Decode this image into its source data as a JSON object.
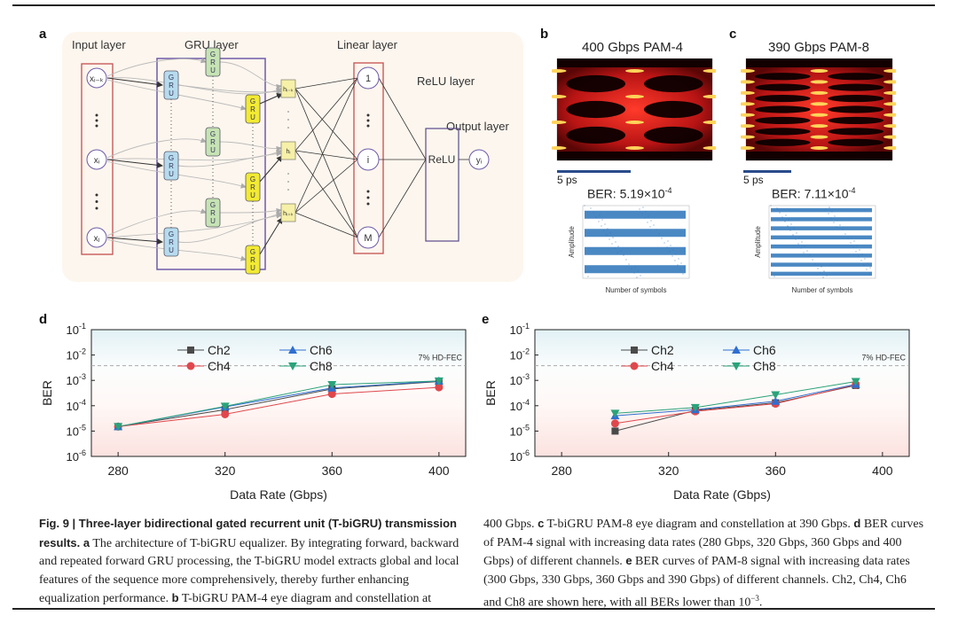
{
  "panels": {
    "a": {
      "label": "a",
      "layers": {
        "input": "Input layer",
        "gru": "GRU layer",
        "linear": "Linear layer",
        "relu": "ReLU layer",
        "output": "Output layer"
      },
      "input_nodes": [
        "xᵢ₋ₖ",
        "xᵢ",
        "xⱼ"
      ],
      "gru_cell_text": [
        "G",
        "R",
        "U"
      ],
      "hidden_nodes": [
        "hᵢ₋ₖ",
        "hᵢ",
        "hᵢ₊ₖ"
      ],
      "linear_nodes": [
        "1",
        "i",
        "M"
      ],
      "relu_box": "ReLU",
      "output_node": "yᵢ",
      "colors": {
        "gru_backward": "#b7dbee",
        "gru_forward": "#c6e3b4",
        "gru_repeat": "#f2ea33",
        "hidden": "#f6f0a8",
        "input_box": "#c44f4f",
        "gru_box": "#6e5aa8",
        "bg": "#fdf6ee"
      }
    },
    "b": {
      "label": "b",
      "title": "400 Gbps PAM-4",
      "scalebar": "5 ps",
      "ber_title": "BER: 5.19×10",
      "ber_exp": "-4",
      "ylabel": "Amplitude",
      "xlabel": "Number of symbols",
      "levels": 4
    },
    "c": {
      "label": "c",
      "title": "390 Gbps PAM-8",
      "scalebar": "5 ps",
      "ber_title": "BER: 7.11×10",
      "ber_exp": "-4",
      "ylabel": "Amplitude",
      "xlabel": "Number of symbols",
      "levels": 8
    },
    "d": {
      "label": "d"
    },
    "e": {
      "label": "e"
    }
  },
  "chart_data": [
    {
      "id": "d",
      "type": "line",
      "title": "",
      "xlabel": "Data Rate (Gbps)",
      "ylabel": "BER",
      "yscale": "log",
      "xlim": [
        270,
        410
      ],
      "ylim": [
        1e-06,
        0.1
      ],
      "xticks": [
        280,
        320,
        360,
        400
      ],
      "yticks": [
        {
          "v": 0.1,
          "base": "10",
          "exp": "-1"
        },
        {
          "v": 0.01,
          "base": "10",
          "exp": "-2"
        },
        {
          "v": 0.001,
          "base": "10",
          "exp": "-3"
        },
        {
          "v": 0.0001,
          "base": "10",
          "exp": "-4"
        },
        {
          "v": 1e-05,
          "base": "10",
          "exp": "-5"
        },
        {
          "v": 1e-06,
          "base": "10",
          "exp": "-6"
        }
      ],
      "threshold": {
        "value": 0.0038,
        "label": "7%  HD-FEC"
      },
      "legend": "top-center",
      "x": [
        280,
        320,
        360,
        400
      ],
      "series": [
        {
          "name": "Ch2",
          "color": "#4a4a4a",
          "marker": "square",
          "values": [
            1.5e-05,
            7e-05,
            0.00046,
            0.0009
          ]
        },
        {
          "name": "Ch4",
          "color": "#e0474c",
          "marker": "circle",
          "values": [
            1.5e-05,
            4.6e-05,
            0.00029,
            0.00053
          ]
        },
        {
          "name": "Ch6",
          "color": "#2f6fd0",
          "marker": "triangle",
          "values": [
            1.5e-05,
            9e-05,
            0.0005,
            0.00095
          ]
        },
        {
          "name": "Ch8",
          "color": "#2aa37a",
          "marker": "triangle-down",
          "values": [
            1.5e-05,
            9.5e-05,
            0.00068,
            0.00095
          ]
        }
      ]
    },
    {
      "id": "e",
      "type": "line",
      "title": "",
      "xlabel": "Data Rate (Gbps)",
      "ylabel": "BER",
      "yscale": "log",
      "xlim": [
        270,
        410
      ],
      "ylim": [
        1e-06,
        0.1
      ],
      "xticks": [
        280,
        320,
        360,
        400
      ],
      "yticks": [
        {
          "v": 0.1,
          "base": "10",
          "exp": "-1"
        },
        {
          "v": 0.01,
          "base": "10",
          "exp": "-2"
        },
        {
          "v": 0.001,
          "base": "10",
          "exp": "-3"
        },
        {
          "v": 0.0001,
          "base": "10",
          "exp": "-4"
        },
        {
          "v": 1e-05,
          "base": "10",
          "exp": "-5"
        },
        {
          "v": 1e-06,
          "base": "10",
          "exp": "-6"
        }
      ],
      "threshold": {
        "value": 0.0038,
        "label": "7%  HD-FEC"
      },
      "legend": "top-center",
      "x": [
        300,
        330,
        360,
        390
      ],
      "series": [
        {
          "name": "Ch2",
          "color": "#4a4a4a",
          "marker": "square",
          "values": [
            1e-05,
            6.5e-05,
            0.00013,
            0.00063
          ]
        },
        {
          "name": "Ch4",
          "color": "#e0474c",
          "marker": "circle",
          "values": [
            2e-05,
            6e-05,
            0.00012,
            0.00068
          ]
        },
        {
          "name": "Ch6",
          "color": "#2f6fd0",
          "marker": "triangle",
          "values": [
            4e-05,
            7e-05,
            0.00015,
            0.0007
          ]
        },
        {
          "name": "Ch8",
          "color": "#2aa37a",
          "marker": "triangle-down",
          "values": [
            5e-05,
            8.5e-05,
            0.00027,
            0.0009
          ]
        }
      ]
    }
  ],
  "caption": {
    "left": [
      {
        "bold": true,
        "text": "Fig. 9 | Three-layer bidirectional gated recurrent unit (T-biGRU) transmission results."
      },
      {
        "bold": true,
        "text": " a"
      },
      {
        "bold": false,
        "text": " The architecture of T-biGRU equalizer. By integrating forward, backward and repeated forward GRU processing, the T-biGRU model extracts global and local features of the sequence more comprehensively, thereby further enhancing equalization performance. "
      },
      {
        "bold": true,
        "text": "b"
      },
      {
        "bold": false,
        "text": " T-biGRU PAM-4 eye diagram and constellation at"
      }
    ],
    "right": [
      {
        "bold": false,
        "text": "400 Gbps. "
      },
      {
        "bold": true,
        "text": "c"
      },
      {
        "bold": false,
        "text": " T-biGRU PAM-8 eye diagram and constellation at 390 Gbps. "
      },
      {
        "bold": true,
        "text": "d"
      },
      {
        "bold": false,
        "text": " BER curves of PAM-4 signal with increasing data rates (280 Gbps, 320 Gbps, 360 Gbps and 400 Gbps) of different channels. "
      },
      {
        "bold": true,
        "text": "e"
      },
      {
        "bold": false,
        "text": " BER curves of PAM-8 signal with increasing data rates (300 Gbps, 330 Gbps, 360 Gbps and 390 Gbps) of different channels. Ch2, Ch4, Ch6 and Ch8 are shown here, with all BERs lower than 10"
      },
      {
        "bold": false,
        "sup": true,
        "text": "−3"
      },
      {
        "bold": false,
        "text": "."
      }
    ]
  }
}
